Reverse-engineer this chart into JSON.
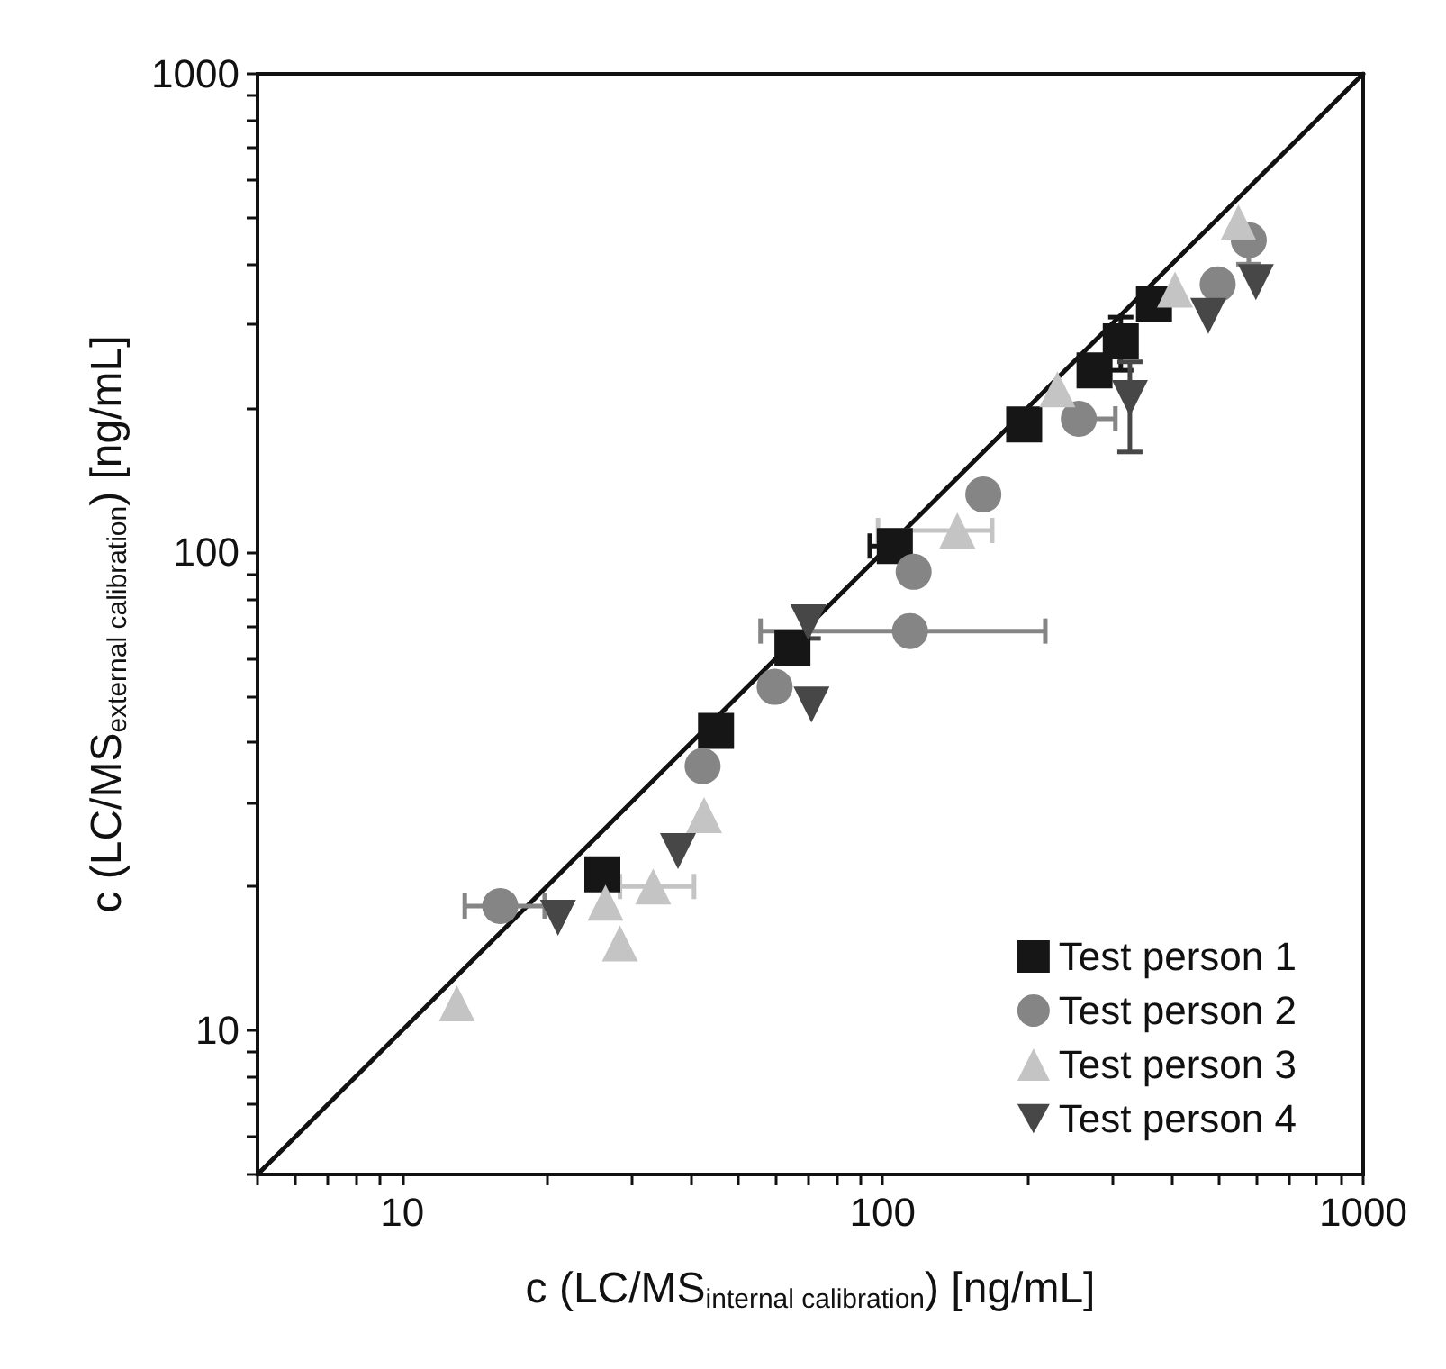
{
  "chart_data": {
    "type": "scatter",
    "xlabel": "c (LC/MS$_{internal calibration}$) [ng/mL]",
    "ylabel": "c (LC/MS$_{external calibration}$) [ng/mL]",
    "log": "xy",
    "xlim": [
      5,
      1000
    ],
    "ylim": [
      5,
      1000
    ],
    "xticks": [
      {
        "value": 5,
        "label": null
      },
      {
        "value": 6,
        "label": null
      },
      {
        "value": 7,
        "label": null
      },
      {
        "value": 8,
        "label": null
      },
      {
        "value": 9,
        "label": null
      },
      10,
      {
        "value": 20,
        "label": null
      },
      {
        "value": 30,
        "label": null
      },
      {
        "value": 40,
        "label": null
      },
      {
        "value": 50,
        "label": null
      },
      {
        "value": 60,
        "label": null
      },
      {
        "value": 70,
        "label": null
      },
      {
        "value": 80,
        "label": null
      },
      {
        "value": 90,
        "label": null
      },
      100,
      {
        "value": 200,
        "label": null
      },
      {
        "value": 300,
        "label": null
      },
      {
        "value": 400,
        "label": null
      },
      {
        "value": 500,
        "label": null
      },
      {
        "value": 600,
        "label": null
      },
      {
        "value": 700,
        "label": null
      },
      {
        "value": 800,
        "label": null
      },
      {
        "value": 900,
        "label": null
      },
      1000
    ],
    "yticks": [
      {
        "value": 5,
        "label": null
      },
      {
        "value": 6,
        "label": null
      },
      {
        "value": 7,
        "label": null
      },
      {
        "value": 8,
        "label": null
      },
      {
        "value": 9,
        "label": null
      },
      10,
      {
        "value": 20,
        "label": null
      },
      {
        "value": 30,
        "label": null
      },
      {
        "value": 40,
        "label": null
      },
      {
        "value": 50,
        "label": null
      },
      {
        "value": 60,
        "label": null
      },
      {
        "value": 70,
        "label": null
      },
      {
        "value": 80,
        "label": null
      },
      {
        "value": 90,
        "label": null
      },
      100,
      {
        "value": 200,
        "label": null
      },
      {
        "value": 300,
        "label": null
      },
      {
        "value": 400,
        "label": null
      },
      {
        "value": 500,
        "label": null
      },
      {
        "value": 600,
        "label": null
      },
      {
        "value": 700,
        "label": null
      },
      {
        "value": 800,
        "label": null
      },
      {
        "value": 900,
        "label": null
      },
      1000
    ],
    "grid": false,
    "legend": "bottom right",
    "series": [
      {
        "name": "Test person 1",
        "color": "#161616",
        "marker": "square",
        "x": [
          26.1,
          45,
          64.9,
          106,
          197,
          276,
          313,
          367
        ],
        "values": [
          21.2,
          42.3,
          63,
          103,
          185,
          240,
          276,
          331
        ],
        "errors": [
          null,
          null,
          null,
          null,
          null,
          null,
          [
            240,
            310
          ],
          null
        ],
        "xerrors": [
          null,
          null,
          null,
          [
            94,
            106
          ],
          null,
          null,
          null,
          null
        ]
      },
      {
        "name": "Test person 2",
        "color": "#858585",
        "marker": "circle",
        "x": [
          16.0,
          42.2,
          59.6,
          114,
          116,
          162,
          256,
          498,
          578
        ],
        "values": [
          18.2,
          35.7,
          52.3,
          68.4,
          91,
          132,
          190,
          363,
          449
        ],
        "errors": [
          null,
          null,
          null,
          null,
          null,
          null,
          null,
          null,
          [
            400,
            449
          ]
        ],
        "xerrors": [
          [
            13.5,
            19.8
          ],
          null,
          null,
          [
            55.7,
            218
          ],
          null,
          null,
          [
            256,
            305
          ],
          null,
          null
        ]
      },
      {
        "name": "Test person 3",
        "color": "#c4c4c4",
        "marker": "triangle",
        "x": [
          13.0,
          26.5,
          28.4,
          33.3,
          42.5,
          143,
          231,
          406,
          550
        ],
        "values": [
          11.4,
          18.5,
          15.2,
          20.0,
          28.2,
          111,
          219,
          354,
          489
        ],
        "errors": [
          null,
          null,
          null,
          null,
          null,
          null,
          null,
          null,
          null
        ],
        "xerrors": [
          null,
          null,
          null,
          [
            28.4,
            40.5
          ],
          null,
          [
            97.8,
            169
          ],
          null,
          null,
          null
        ]
      },
      {
        "name": "Test person 4",
        "color": "#474747",
        "marker": "triangle-down",
        "x": [
          21.1,
          37.5,
          71.1,
          70,
          327,
          476,
          598
        ],
        "values": [
          17.2,
          23.7,
          48.0,
          71.3,
          210,
          312,
          367
        ],
        "errors": [
          null,
          null,
          null,
          [
            66,
            76
          ],
          [
            162,
            250
          ],
          null,
          null
        ],
        "xerrors": [
          null,
          null,
          null,
          null,
          null,
          null,
          null
        ]
      },
      {
        "type": "line",
        "color": "#111111",
        "line_style": "solid",
        "marker": "none",
        "x": [
          5,
          1000
        ],
        "values": [
          5,
          1000
        ]
      }
    ]
  }
}
